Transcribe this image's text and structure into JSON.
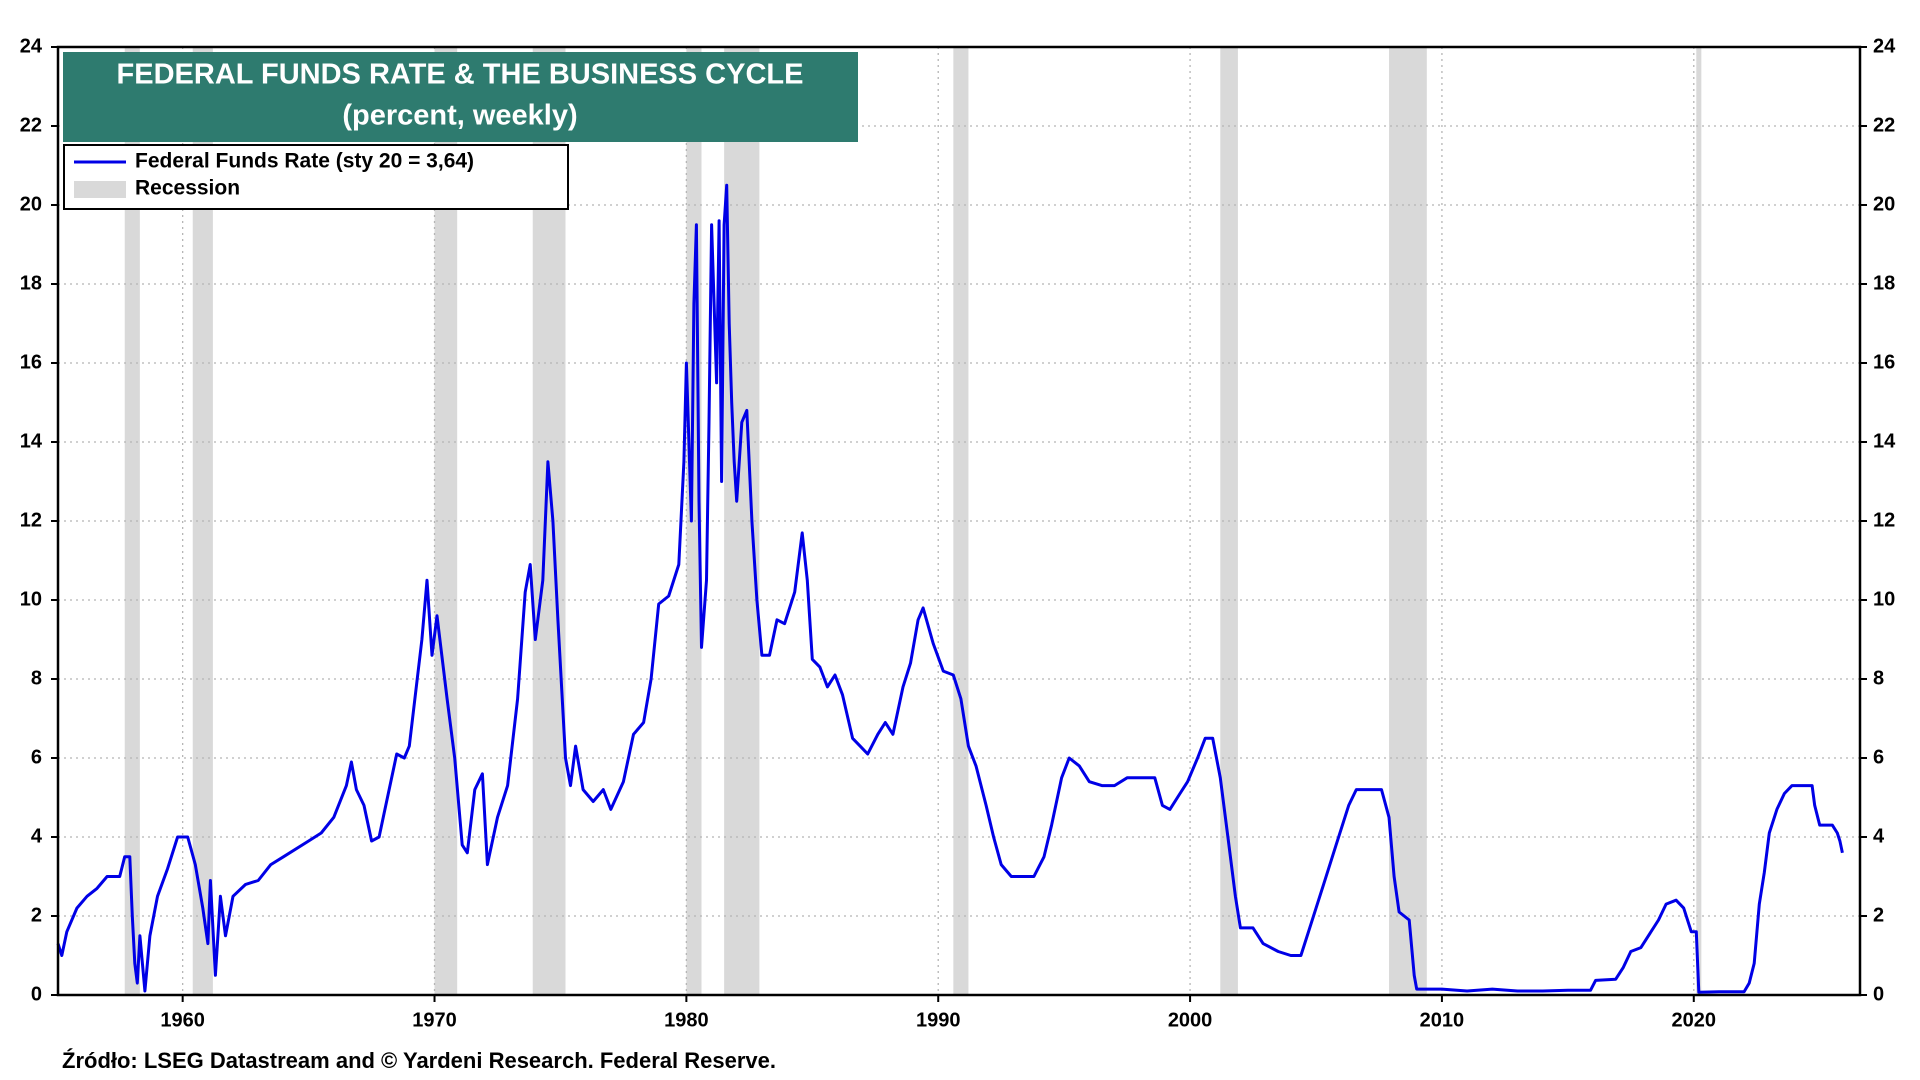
{
  "chart_data": {
    "type": "line",
    "title": "FEDERAL FUNDS RATE & THE BUSINESS CYCLE",
    "subtitle": "(percent, weekly)",
    "source": "Źródło: LSEG Datastream and © Yardeni Research. Federal Reserve.",
    "xlim": [
      1955.05,
      2026.6
    ],
    "xticks": [
      1960,
      1970,
      1980,
      1990,
      2000,
      2010,
      2020
    ],
    "ylim": [
      0,
      24
    ],
    "yticks": [
      0,
      2,
      4,
      6,
      8,
      10,
      12,
      14,
      16,
      18,
      20,
      22,
      24
    ],
    "grid": true,
    "legend": "upper left",
    "recessions": {
      "name": "Recession",
      "color": "#d9d9d9",
      "spans": [
        [
          1957.7,
          1958.3
        ],
        [
          1960.4,
          1961.2
        ],
        [
          1970.0,
          1970.9
        ],
        [
          1973.9,
          1975.2
        ],
        [
          1980.0,
          1980.6
        ],
        [
          1981.5,
          1982.9
        ],
        [
          1990.6,
          1991.2
        ],
        [
          2001.2,
          2001.9
        ],
        [
          2007.9,
          2009.4
        ],
        [
          2020.1,
          2020.3
        ]
      ]
    },
    "x": [
      1955.05,
      1955.2,
      1955.4,
      1955.8,
      1956.2,
      1956.6,
      1957.0,
      1957.5,
      1957.7,
      1957.9,
      1958.0,
      1958.1,
      1958.2,
      1958.3,
      1958.5,
      1958.7,
      1959.0,
      1959.4,
      1959.8,
      1960.2,
      1960.5,
      1960.8,
      1961.0,
      1961.1,
      1961.3,
      1961.5,
      1961.7,
      1962.0,
      1962.5,
      1963.0,
      1963.5,
      1964.0,
      1965.0,
      1965.5,
      1966.0,
      1966.5,
      1966.7,
      1966.9,
      1967.2,
      1967.5,
      1967.8,
      1968.0,
      1968.5,
      1968.8,
      1969.0,
      1969.5,
      1969.7,
      1969.9,
      1970.1,
      1970.5,
      1970.8,
      1971.1,
      1971.3,
      1971.6,
      1971.9,
      1972.1,
      1972.5,
      1972.9,
      1973.3,
      1973.6,
      1973.8,
      1974.0,
      1974.3,
      1974.5,
      1974.7,
      1974.9,
      1975.2,
      1975.4,
      1975.6,
      1975.9,
      1976.3,
      1976.7,
      1977.0,
      1977.5,
      1977.9,
      1978.3,
      1978.6,
      1978.9,
      1979.3,
      1979.7,
      1979.9,
      1980.0,
      1980.2,
      1980.3,
      1980.4,
      1980.5,
      1980.6,
      1980.8,
      1980.9,
      1981.0,
      1981.2,
      1981.3,
      1981.4,
      1981.5,
      1981.6,
      1981.7,
      1981.8,
      1981.9,
      1982.0,
      1982.2,
      1982.4,
      1982.6,
      1982.8,
      1983.0,
      1983.3,
      1983.6,
      1983.9,
      1984.3,
      1984.6,
      1984.8,
      1985.0,
      1985.3,
      1985.6,
      1985.9,
      1986.2,
      1986.6,
      1986.9,
      1987.2,
      1987.6,
      1987.9,
      1988.2,
      1988.6,
      1988.9,
      1989.2,
      1989.4,
      1989.8,
      1990.2,
      1990.6,
      1990.9,
      1991.2,
      1991.5,
      1991.9,
      1992.2,
      1992.5,
      1992.9,
      1993.3,
      1993.8,
      1994.2,
      1994.5,
      1994.9,
      1995.2,
      1995.6,
      1996.0,
      1996.5,
      1997.0,
      1997.5,
      1998.0,
      1998.6,
      1998.9,
      1999.2,
      1999.6,
      1999.9,
      2000.3,
      2000.6,
      2000.9,
      2001.2,
      2001.5,
      2001.8,
      2002.0,
      2002.5,
      2002.9,
      2003.5,
      2004.0,
      2004.4,
      2004.8,
      2005.3,
      2005.8,
      2006.3,
      2006.6,
      2007.0,
      2007.6,
      2007.9,
      2008.1,
      2008.3,
      2008.7,
      2008.9,
      2009.0,
      2010.0,
      2011.0,
      2012.0,
      2013.0,
      2014.0,
      2015.0,
      2015.9,
      2016.1,
      2016.9,
      2017.2,
      2017.5,
      2017.9,
      2018.2,
      2018.6,
      2018.9,
      2019.3,
      2019.6,
      2019.9,
      2020.1,
      2020.2,
      2021.0,
      2022.0,
      2022.2,
      2022.4,
      2022.6,
      2022.8,
      2023.0,
      2023.3,
      2023.6,
      2023.9,
      2024.4,
      2024.7,
      2024.8,
      2025.0,
      2025.5,
      2025.7,
      2025.8,
      2025.9
    ],
    "series": [
      {
        "name": "Federal Funds Rate (sty 20 = 3,64)",
        "color": "#0000e6",
        "values": [
          1.3,
          1.0,
          1.6,
          2.2,
          2.5,
          2.7,
          3.0,
          3.0,
          3.5,
          3.5,
          2.0,
          0.8,
          0.3,
          1.5,
          0.1,
          1.5,
          2.5,
          3.2,
          4.0,
          4.0,
          3.3,
          2.2,
          1.3,
          2.9,
          0.5,
          2.5,
          1.5,
          2.5,
          2.8,
          2.9,
          3.3,
          3.5,
          3.9,
          4.1,
          4.5,
          5.3,
          5.9,
          5.2,
          4.8,
          3.9,
          4.0,
          4.6,
          6.1,
          6.0,
          6.3,
          9.0,
          10.5,
          8.6,
          9.6,
          7.5,
          6.0,
          3.8,
          3.6,
          5.2,
          5.6,
          3.3,
          4.5,
          5.3,
          7.5,
          10.2,
          10.9,
          9.0,
          10.5,
          13.5,
          12.0,
          9.5,
          6.0,
          5.3,
          6.3,
          5.2,
          4.9,
          5.2,
          4.7,
          5.4,
          6.6,
          6.9,
          8.0,
          9.9,
          10.1,
          10.9,
          13.5,
          16.0,
          12.0,
          17.5,
          19.5,
          12.5,
          8.8,
          10.5,
          14.5,
          19.5,
          15.5,
          19.6,
          13.0,
          19.5,
          20.5,
          17.0,
          15.0,
          13.5,
          12.5,
          14.5,
          14.8,
          12.0,
          10.0,
          8.6,
          8.6,
          9.5,
          9.4,
          10.2,
          11.7,
          10.5,
          8.5,
          8.3,
          7.8,
          8.1,
          7.6,
          6.5,
          6.3,
          6.1,
          6.6,
          6.9,
          6.6,
          7.8,
          8.4,
          9.5,
          9.8,
          8.9,
          8.2,
          8.1,
          7.5,
          6.3,
          5.8,
          4.8,
          4.0,
          3.3,
          3.0,
          3.0,
          3.0,
          3.5,
          4.3,
          5.5,
          6.0,
          5.8,
          5.4,
          5.3,
          5.3,
          5.5,
          5.5,
          5.5,
          4.8,
          4.7,
          5.1,
          5.4,
          6.0,
          6.5,
          6.5,
          5.5,
          4.0,
          2.5,
          1.7,
          1.7,
          1.3,
          1.1,
          1.0,
          1.0,
          1.8,
          2.8,
          3.8,
          4.8,
          5.2,
          5.2,
          5.2,
          4.5,
          3.0,
          2.1,
          1.9,
          0.5,
          0.15,
          0.15,
          0.1,
          0.15,
          0.1,
          0.1,
          0.12,
          0.12,
          0.37,
          0.4,
          0.7,
          1.1,
          1.2,
          1.5,
          1.9,
          2.3,
          2.4,
          2.2,
          1.6,
          1.6,
          0.07,
          0.08,
          0.08,
          0.3,
          0.8,
          2.3,
          3.1,
          4.1,
          4.7,
          5.1,
          5.3,
          5.3,
          5.3,
          4.8,
          4.3,
          4.3,
          4.1,
          3.9,
          3.6
        ]
      }
    ]
  }
}
